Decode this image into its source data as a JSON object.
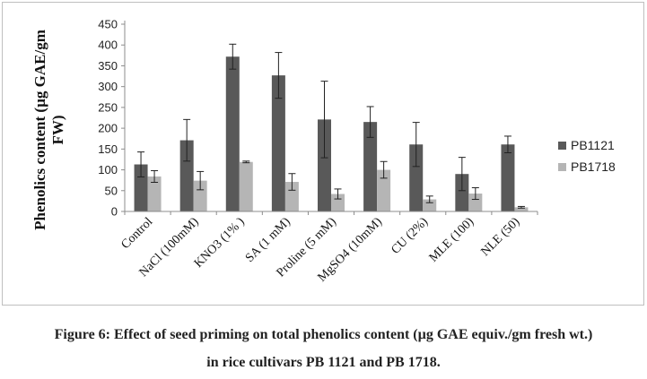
{
  "chart_data": {
    "type": "bar",
    "ylabel": [
      "Phenolics content (µg GAE/gm",
      "FW)"
    ],
    "xlabel": "",
    "ylim": [
      0,
      450
    ],
    "yticks": [
      0,
      50,
      100,
      150,
      200,
      250,
      300,
      350,
      400,
      450
    ],
    "grid": false,
    "legend_position": "right",
    "categories": [
      "Control",
      "NaCl (100mM)",
      "KNO3 (1% )",
      "SA (1 mM)",
      "Proline (5 mM)",
      "MgSO4 (10mM)",
      "CU (2%)",
      "MLE (100)",
      "NLE (50)"
    ],
    "series": [
      {
        "name": "PB1121",
        "color": "#595959",
        "values": [
          113,
          171,
          372,
          327,
          221,
          215,
          161,
          90,
          161
        ],
        "error": [
          30,
          50,
          30,
          55,
          92,
          37,
          53,
          40,
          20
        ]
      },
      {
        "name": "PB1718",
        "color": "#b5b5b5",
        "values": [
          84,
          74,
          119,
          71,
          42,
          100,
          29,
          43,
          10
        ],
        "error": [
          14,
          22,
          2,
          20,
          12,
          20,
          8,
          14,
          2
        ]
      }
    ]
  },
  "caption": {
    "line1": "Figure 6: Effect of seed priming on total phenolics content (µg GAE equiv./gm fresh wt.)",
    "line2": "in rice cultivars PB 1121 and PB 1718."
  }
}
